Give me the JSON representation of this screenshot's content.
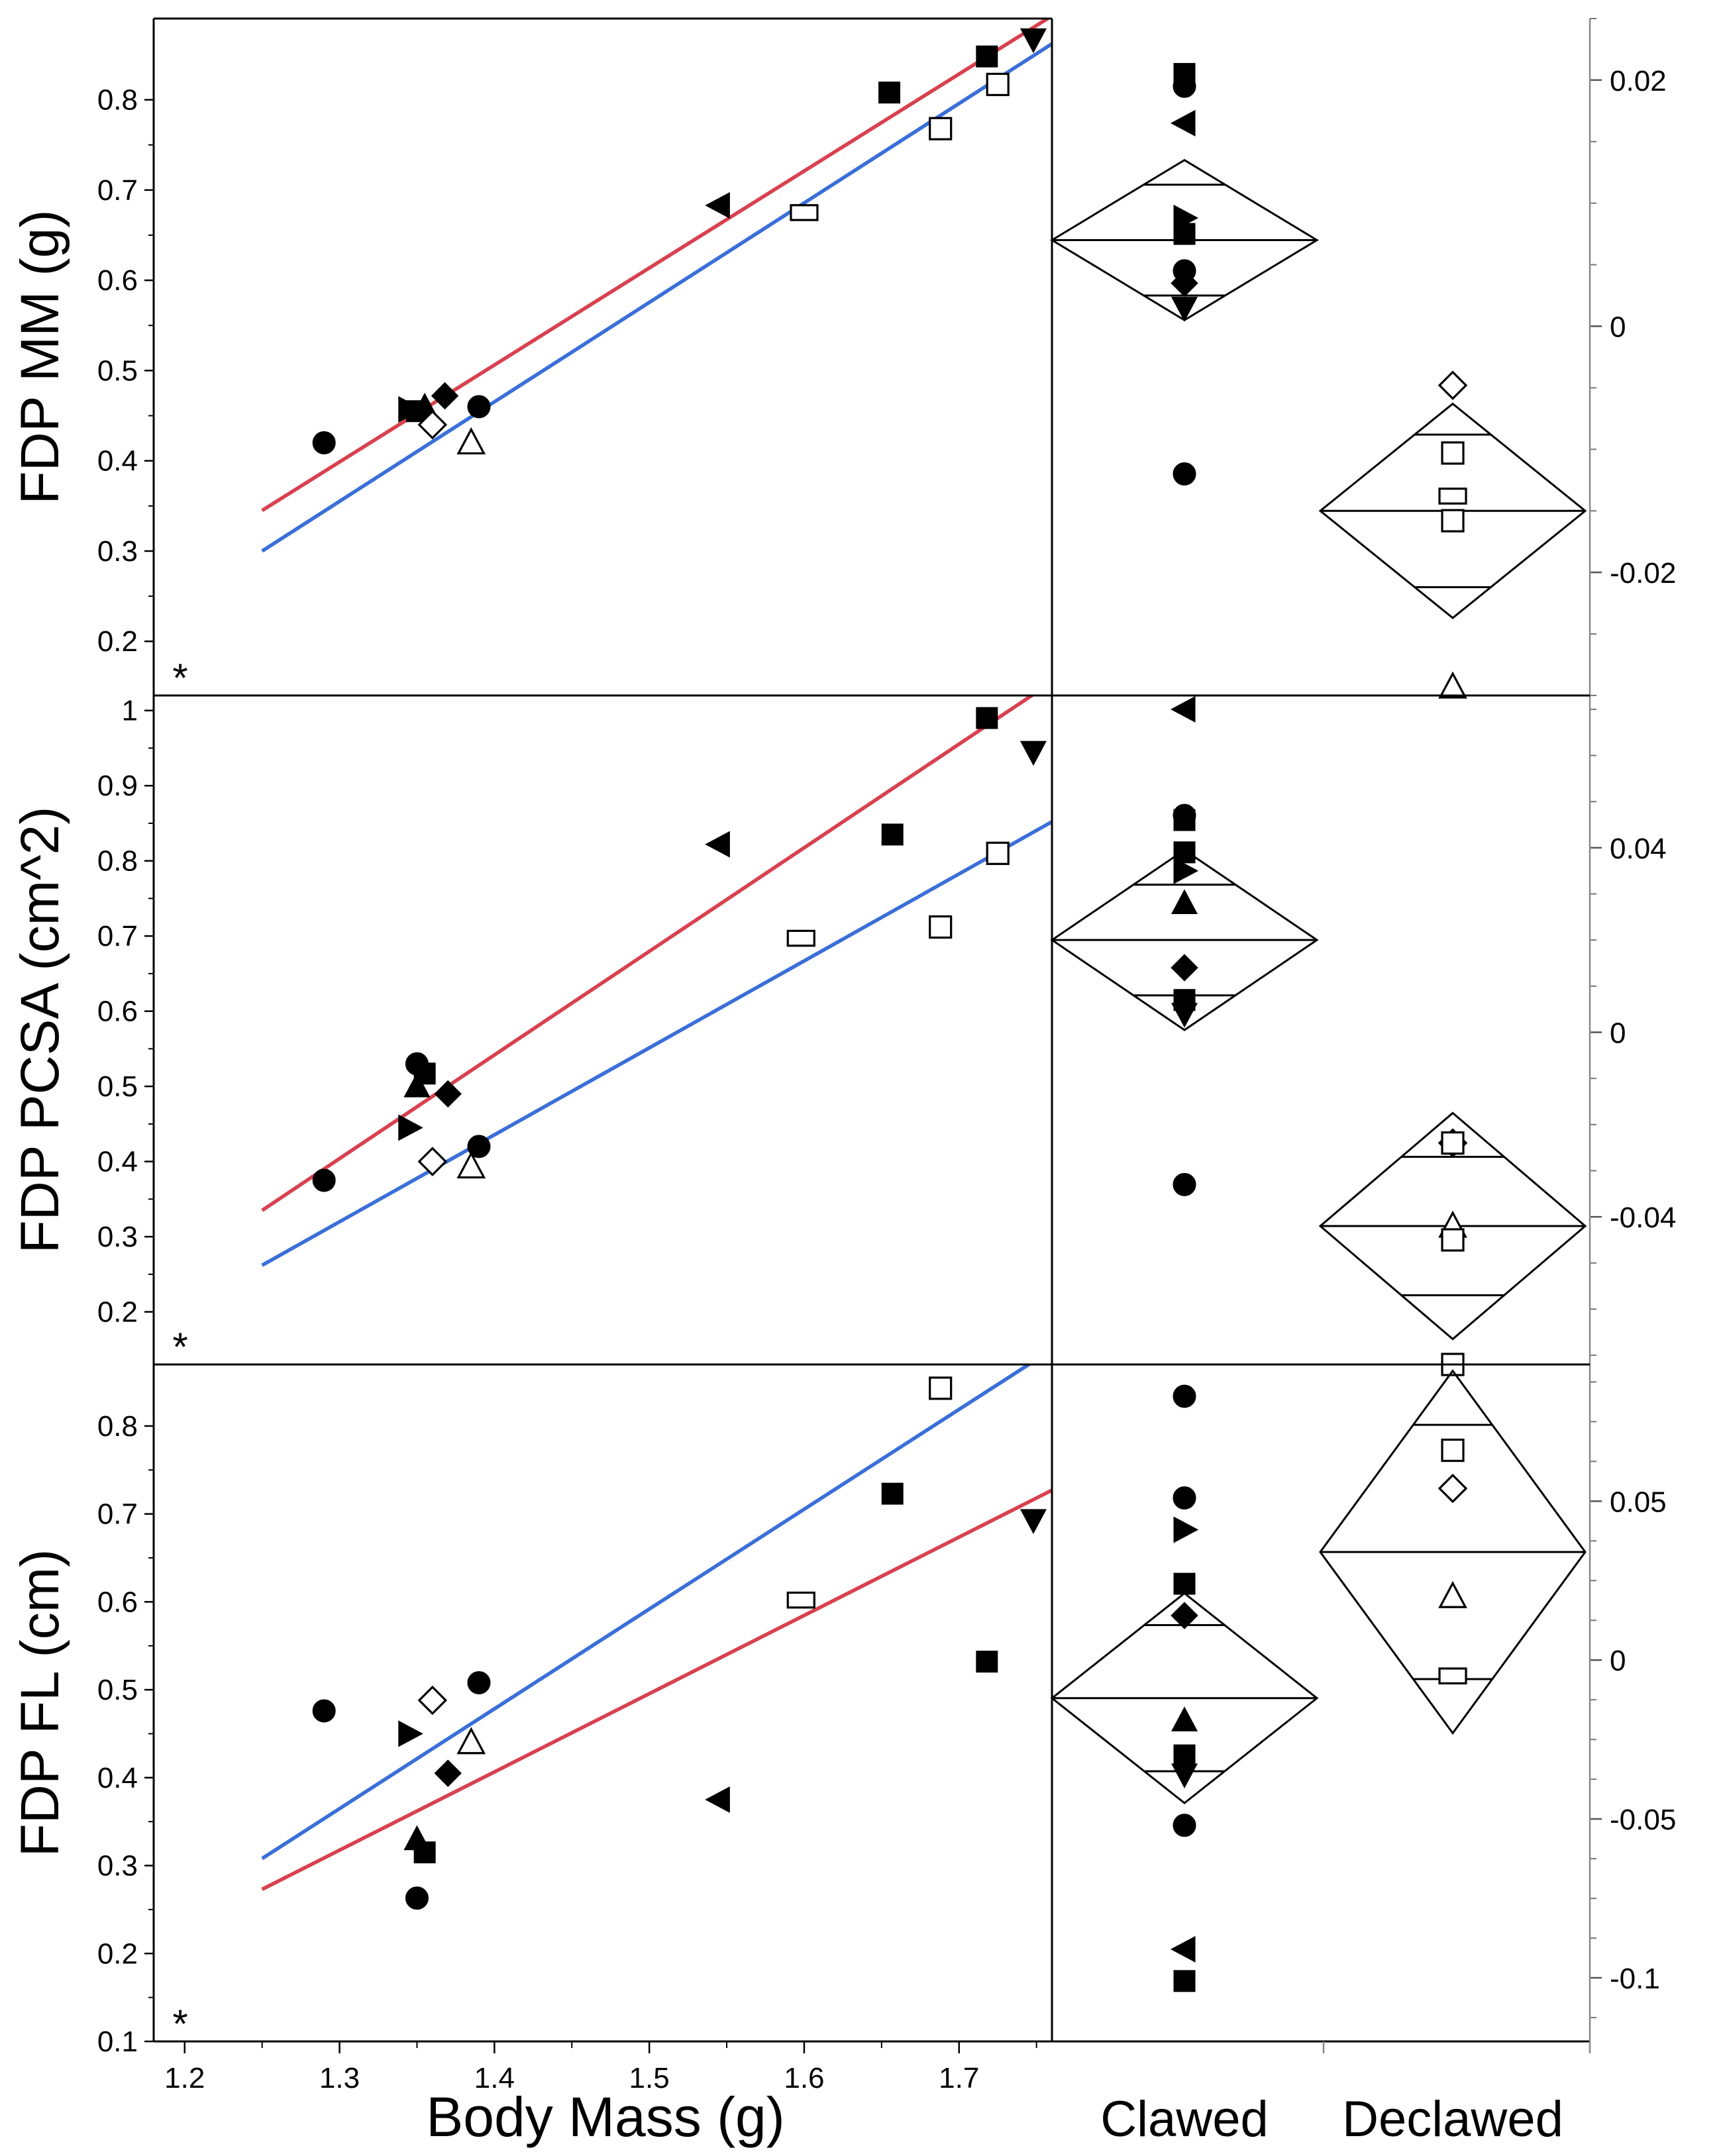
{
  "figure": {
    "x_axis_label": "Body Mass (g)",
    "group_labels": [
      "Clawed",
      "Declawed"
    ],
    "significance_marker": "*"
  },
  "colors": {
    "clawed_line": "#d8414f",
    "declawed_line": "#3a6fd8",
    "marker": "#000000"
  },
  "chart_data": [
    {
      "type": "scatter",
      "id": "mm",
      "ylabel": "FDP MM (g)",
      "xlabel": "Body Mass (g)",
      "xlim": [
        1.18,
        1.76
      ],
      "ylim": [
        0.14,
        0.89
      ],
      "xticks": [
        1.2,
        1.3,
        1.4,
        1.5,
        1.6,
        1.7
      ],
      "xtick_labels": [
        "1.2",
        "1.3",
        "1.4",
        "1.5",
        "1.6",
        "1.7"
      ],
      "yticks": [
        0.2,
        0.3,
        0.4,
        0.5,
        0.6,
        0.7,
        0.8
      ],
      "ytick_labels": [
        "0.2",
        "0.3",
        "0.4",
        "0.5",
        "0.6",
        "0.7",
        "0.8"
      ],
      "significance": "*",
      "series": [
        {
          "name": "Clawed",
          "fit": {
            "x": [
              1.25,
              1.76
            ],
            "y": [
              0.345,
              0.893
            ]
          },
          "points": [
            {
              "x": 1.29,
              "y": 0.42,
              "marker": "circle"
            },
            {
              "x": 1.345,
              "y": 0.457,
              "marker": "tri-right"
            },
            {
              "x": 1.35,
              "y": 0.455,
              "marker": "square"
            },
            {
              "x": 1.355,
              "y": 0.46,
              "marker": "tri-up"
            },
            {
              "x": 1.368,
              "y": 0.472,
              "marker": "diamond"
            },
            {
              "x": 1.39,
              "y": 0.46,
              "marker": "circle"
            },
            {
              "x": 1.545,
              "y": 0.683,
              "marker": "tri-left"
            },
            {
              "x": 1.655,
              "y": 0.808,
              "marker": "square"
            },
            {
              "x": 1.718,
              "y": 0.848,
              "marker": "square"
            },
            {
              "x": 1.748,
              "y": 0.867,
              "marker": "tri-down"
            }
          ]
        },
        {
          "name": "Declawed",
          "fit": {
            "x": [
              1.25,
              1.76
            ],
            "y": [
              0.3,
              0.862
            ]
          },
          "points": [
            {
              "x": 1.36,
              "y": 0.44,
              "marker": "diamond"
            },
            {
              "x": 1.385,
              "y": 0.42,
              "marker": "tri-up"
            },
            {
              "x": 1.6,
              "y": 0.675,
              "marker": "rect"
            },
            {
              "x": 1.688,
              "y": 0.768,
              "marker": "square"
            },
            {
              "x": 1.725,
              "y": 0.817,
              "marker": "square"
            }
          ]
        }
      ],
      "residuals": {
        "ylim": [
          -0.03,
          0.025
        ],
        "yticks": [
          -0.02,
          0,
          0.02
        ],
        "ytick_labels": [
          "-0.02",
          "0",
          "0.02"
        ],
        "clawed": {
          "points": [
            {
              "y": 0.0205,
              "marker": "square"
            },
            {
              "y": 0.0195,
              "marker": "circle"
            },
            {
              "y": 0.0165,
              "marker": "tri-left"
            },
            {
              "y": 0.0088,
              "marker": "tri-right"
            },
            {
              "y": 0.0075,
              "marker": "square"
            },
            {
              "y": 0.0045,
              "marker": "circle"
            },
            {
              "y": 0.0035,
              "marker": "diamond"
            },
            {
              "y": 0.0015,
              "marker": "tri-down"
            },
            {
              "y": -0.012,
              "marker": "circle"
            }
          ],
          "mean": 0.007,
          "ci": [
            0.0005,
            0.0135
          ],
          "overlap": [
            0.0025,
            0.0115
          ]
        },
        "declawed": {
          "points": [
            {
              "y": -0.0048,
              "marker": "diamond"
            },
            {
              "y": -0.0103,
              "marker": "square"
            },
            {
              "y": -0.0138,
              "marker": "rect"
            },
            {
              "y": -0.0158,
              "marker": "square"
            },
            {
              "y": -0.0293,
              "marker": "tri-up"
            }
          ],
          "mean": -0.015,
          "ci": [
            -0.0237,
            -0.0063
          ],
          "overlap": [
            -0.0212,
            -0.0088
          ]
        }
      }
    },
    {
      "type": "scatter",
      "id": "pcsa",
      "ylabel": "FDP PCSA (cm^2)",
      "xlabel": "Body Mass (g)",
      "xlim": [
        1.18,
        1.76
      ],
      "ylim": [
        0.13,
        1.02
      ],
      "xticks": [
        1.2,
        1.3,
        1.4,
        1.5,
        1.6,
        1.7
      ],
      "xtick_labels": [
        "1.2",
        "1.3",
        "1.4",
        "1.5",
        "1.6",
        "1.7"
      ],
      "yticks": [
        0.2,
        0.3,
        0.4,
        0.5,
        0.6,
        0.7,
        0.8,
        0.9,
        1
      ],
      "ytick_labels": [
        "0.2",
        "0.3",
        "0.4",
        "0.5",
        "0.6",
        "0.7",
        "0.8",
        "0.9",
        "1"
      ],
      "significance": "*",
      "series": [
        {
          "name": "Clawed",
          "fit": {
            "x": [
              1.25,
              1.76
            ],
            "y": [
              0.335,
              1.038
            ]
          },
          "points": [
            {
              "x": 1.29,
              "y": 0.375,
              "marker": "circle"
            },
            {
              "x": 1.345,
              "y": 0.445,
              "marker": "tri-right"
            },
            {
              "x": 1.35,
              "y": 0.5,
              "marker": "tri-up"
            },
            {
              "x": 1.35,
              "y": 0.53,
              "marker": "circle"
            },
            {
              "x": 1.355,
              "y": 0.517,
              "marker": "square"
            },
            {
              "x": 1.37,
              "y": 0.49,
              "marker": "diamond"
            },
            {
              "x": 1.39,
              "y": 0.42,
              "marker": "circle"
            },
            {
              "x": 1.545,
              "y": 0.822,
              "marker": "tri-left"
            },
            {
              "x": 1.657,
              "y": 0.835,
              "marker": "square"
            },
            {
              "x": 1.718,
              "y": 0.99,
              "marker": "square"
            },
            {
              "x": 1.748,
              "y": 0.945,
              "marker": "tri-down"
            }
          ]
        },
        {
          "name": "Declawed",
          "fit": {
            "x": [
              1.25,
              1.76
            ],
            "y": [
              0.262,
              0.852
            ]
          },
          "points": [
            {
              "x": 1.36,
              "y": 0.4,
              "marker": "diamond"
            },
            {
              "x": 1.385,
              "y": 0.393,
              "marker": "tri-up"
            },
            {
              "x": 1.598,
              "y": 0.697,
              "marker": "rect"
            },
            {
              "x": 1.688,
              "y": 0.712,
              "marker": "square"
            },
            {
              "x": 1.725,
              "y": 0.81,
              "marker": "square"
            }
          ]
        }
      ],
      "residuals": {
        "ylim": [
          -0.072,
          0.073
        ],
        "yticks": [
          -0.04,
          0,
          0.04
        ],
        "ytick_labels": [
          "-0.04",
          "0",
          "0.04"
        ],
        "clawed": {
          "points": [
            {
              "y": 0.07,
              "marker": "tri-left"
            },
            {
              "y": 0.047,
              "marker": "circle"
            },
            {
              "y": 0.046,
              "marker": "square"
            },
            {
              "y": 0.039,
              "marker": "square"
            },
            {
              "y": 0.035,
              "marker": "tri-right"
            },
            {
              "y": 0.028,
              "marker": "tri-up"
            },
            {
              "y": 0.014,
              "marker": "diamond"
            },
            {
              "y": 0.007,
              "marker": "square"
            },
            {
              "y": 0.004,
              "marker": "tri-down"
            },
            {
              "y": -0.033,
              "marker": "circle"
            }
          ],
          "mean": 0.02,
          "ci": [
            0.0005,
            0.0395
          ],
          "overlap": [
            0.008,
            0.032
          ]
        },
        "declawed": {
          "points": [
            {
              "y": -0.024,
              "marker": "diamond"
            },
            {
              "y": -0.024,
              "marker": "square"
            },
            {
              "y": -0.042,
              "marker": "tri-up"
            },
            {
              "y": -0.045,
              "marker": "square"
            },
            {
              "y": -0.072,
              "marker": "square"
            }
          ],
          "mean": -0.042,
          "ci": [
            -0.0665,
            -0.0175
          ],
          "overlap": [
            -0.057,
            -0.027
          ]
        }
      }
    },
    {
      "type": "scatter",
      "id": "fl",
      "ylabel": "FDP FL (cm)",
      "xlabel": "Body Mass (g)",
      "xlim": [
        1.18,
        1.76
      ],
      "ylim": [
        0.1,
        0.87
      ],
      "xticks": [
        1.2,
        1.3,
        1.4,
        1.5,
        1.6,
        1.7
      ],
      "xtick_labels": [
        "1.2",
        "1.3",
        "1.4",
        "1.5",
        "1.6",
        "1.7"
      ],
      "yticks": [
        0.1,
        0.2,
        0.3,
        0.4,
        0.5,
        0.6,
        0.7,
        0.8
      ],
      "ytick_labels": [
        "0.1",
        "0.2",
        "0.3",
        "0.4",
        "0.5",
        "0.6",
        "0.7",
        "0.8"
      ],
      "significance": "*",
      "series": [
        {
          "name": "Clawed",
          "fit": {
            "x": [
              1.25,
              1.76
            ],
            "y": [
              0.273,
              0.727
            ]
          },
          "points": [
            {
              "x": 1.29,
              "y": 0.476,
              "marker": "circle"
            },
            {
              "x": 1.345,
              "y": 0.45,
              "marker": "tri-right"
            },
            {
              "x": 1.35,
              "y": 0.33,
              "marker": "tri-up"
            },
            {
              "x": 1.355,
              "y": 0.315,
              "marker": "square"
            },
            {
              "x": 1.35,
              "y": 0.263,
              "marker": "circle"
            },
            {
              "x": 1.37,
              "y": 0.405,
              "marker": "diamond"
            },
            {
              "x": 1.39,
              "y": 0.508,
              "marker": "circle"
            },
            {
              "x": 1.545,
              "y": 0.375,
              "marker": "tri-left"
            },
            {
              "x": 1.657,
              "y": 0.723,
              "marker": "square"
            },
            {
              "x": 1.718,
              "y": 0.532,
              "marker": "square"
            },
            {
              "x": 1.748,
              "y": 0.693,
              "marker": "tri-down"
            }
          ]
        },
        {
          "name": "Declawed",
          "fit": {
            "x": [
              1.25,
              1.76
            ],
            "y": [
              0.308,
              0.887
            ]
          },
          "points": [
            {
              "x": 1.36,
              "y": 0.488,
              "marker": "diamond"
            },
            {
              "x": 1.385,
              "y": 0.44,
              "marker": "tri-up"
            },
            {
              "x": 1.598,
              "y": 0.602,
              "marker": "rect"
            },
            {
              "x": 1.688,
              "y": 0.843,
              "marker": "square"
            }
          ]
        }
      ],
      "residuals": {
        "ylim": [
          -0.12,
          0.093
        ],
        "yticks": [
          -0.1,
          -0.05,
          0,
          0.05
        ],
        "ytick_labels": [
          "-0.1",
          "-0.05",
          "0",
          "0.05"
        ],
        "clawed": {
          "points": [
            {
              "y": 0.083,
              "marker": "circle"
            },
            {
              "y": 0.051,
              "marker": "circle"
            },
            {
              "y": 0.041,
              "marker": "tri-right"
            },
            {
              "y": 0.024,
              "marker": "square"
            },
            {
              "y": 0.014,
              "marker": "diamond"
            },
            {
              "y": -0.019,
              "marker": "tri-up"
            },
            {
              "y": -0.03,
              "marker": "square"
            },
            {
              "y": -0.036,
              "marker": "tri-down"
            },
            {
              "y": -0.052,
              "marker": "circle"
            },
            {
              "y": -0.091,
              "marker": "tri-left"
            },
            {
              "y": -0.101,
              "marker": "square"
            }
          ],
          "mean": -0.012,
          "ci": [
            -0.045,
            0.021
          ],
          "overlap": [
            -0.035,
            0.011
          ]
        },
        "declawed": {
          "points": [
            {
              "y": 0.066,
              "marker": "square"
            },
            {
              "y": 0.054,
              "marker": "diamond"
            },
            {
              "y": 0.02,
              "marker": "tri-up"
            },
            {
              "y": -0.005,
              "marker": "rect"
            }
          ],
          "mean": 0.034,
          "ci": [
            -0.023,
            0.091
          ],
          "overlap": [
            -0.006,
            0.074
          ]
        }
      }
    }
  ]
}
